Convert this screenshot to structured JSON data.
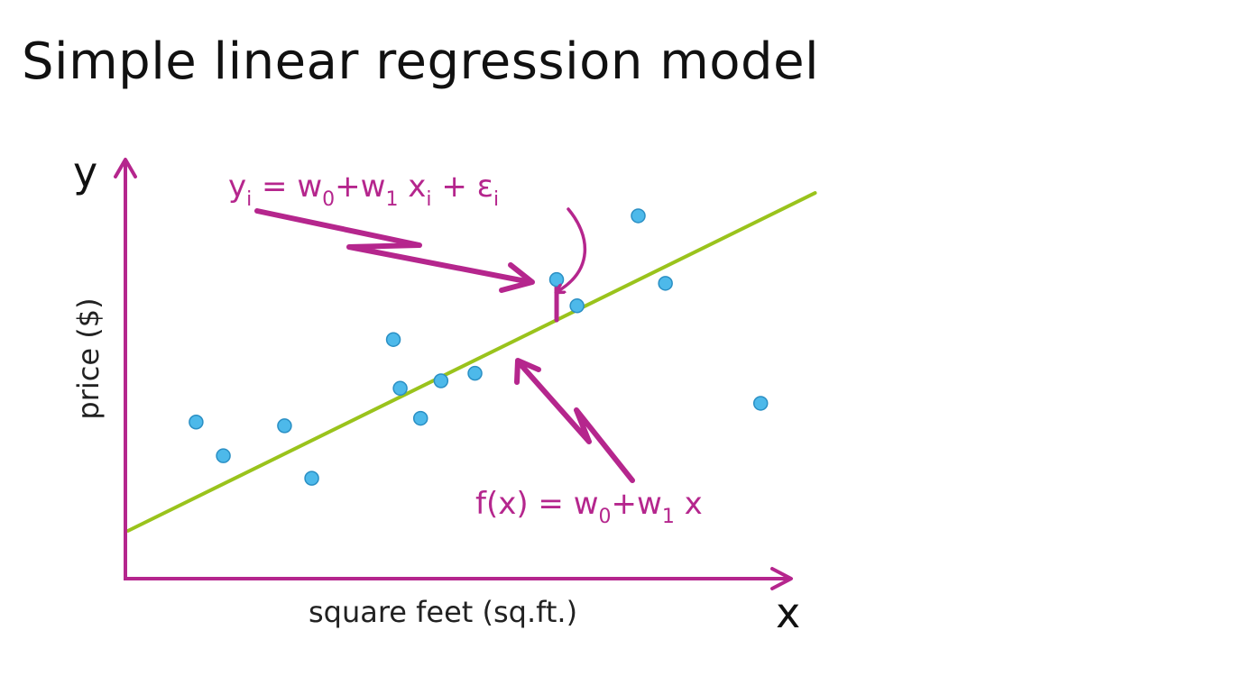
{
  "slide": {
    "title": "Simple linear regression model"
  },
  "colors": {
    "axis": "#b5268d",
    "fit_line": "#9ac31c",
    "point_fill": "#4db9ea",
    "point_stroke": "#2a8fc4",
    "annotation": "#b5268d"
  },
  "chart_data": {
    "type": "scatter",
    "title": "",
    "x_axis_letter": "x",
    "y_axis_letter": "y",
    "xlabel": "square feet (sq.ft.)",
    "ylabel": "price ($)",
    "xlim": [
      0,
      100
    ],
    "ylim": [
      0,
      100
    ],
    "grid": false,
    "ticks": false,
    "points": [
      {
        "x": 10,
        "y": 36
      },
      {
        "x": 14,
        "y": 27
      },
      {
        "x": 23,
        "y": 35
      },
      {
        "x": 27,
        "y": 21
      },
      {
        "x": 39,
        "y": 58
      },
      {
        "x": 40,
        "y": 45
      },
      {
        "x": 43,
        "y": 37
      },
      {
        "x": 46,
        "y": 47
      },
      {
        "x": 51,
        "y": 49
      },
      {
        "x": 63,
        "y": 74
      },
      {
        "x": 66,
        "y": 67
      },
      {
        "x": 75,
        "y": 91
      },
      {
        "x": 79,
        "y": 73
      },
      {
        "x": 93,
        "y": 41
      }
    ],
    "fit_line": {
      "intercept": 7,
      "slope": 0.892,
      "x_range": [
        0,
        101
      ]
    },
    "highlight_point_index": 9,
    "annotations": {
      "observation_eq": {
        "y": "y",
        "i1": "i",
        "equals": " = ",
        "w0": "w",
        "zero": "0",
        "plus": "+",
        "w1": "w",
        "one": "1",
        "x": " x",
        "i2": "i",
        "plus2": " + ",
        "eps": "ε",
        "i3": "i"
      },
      "model_eq": {
        "fx": "f(x) = ",
        "w0": "w",
        "zero": "0",
        "plus": "+",
        "w1": "w",
        "one": "1",
        "x": " x"
      }
    }
  }
}
